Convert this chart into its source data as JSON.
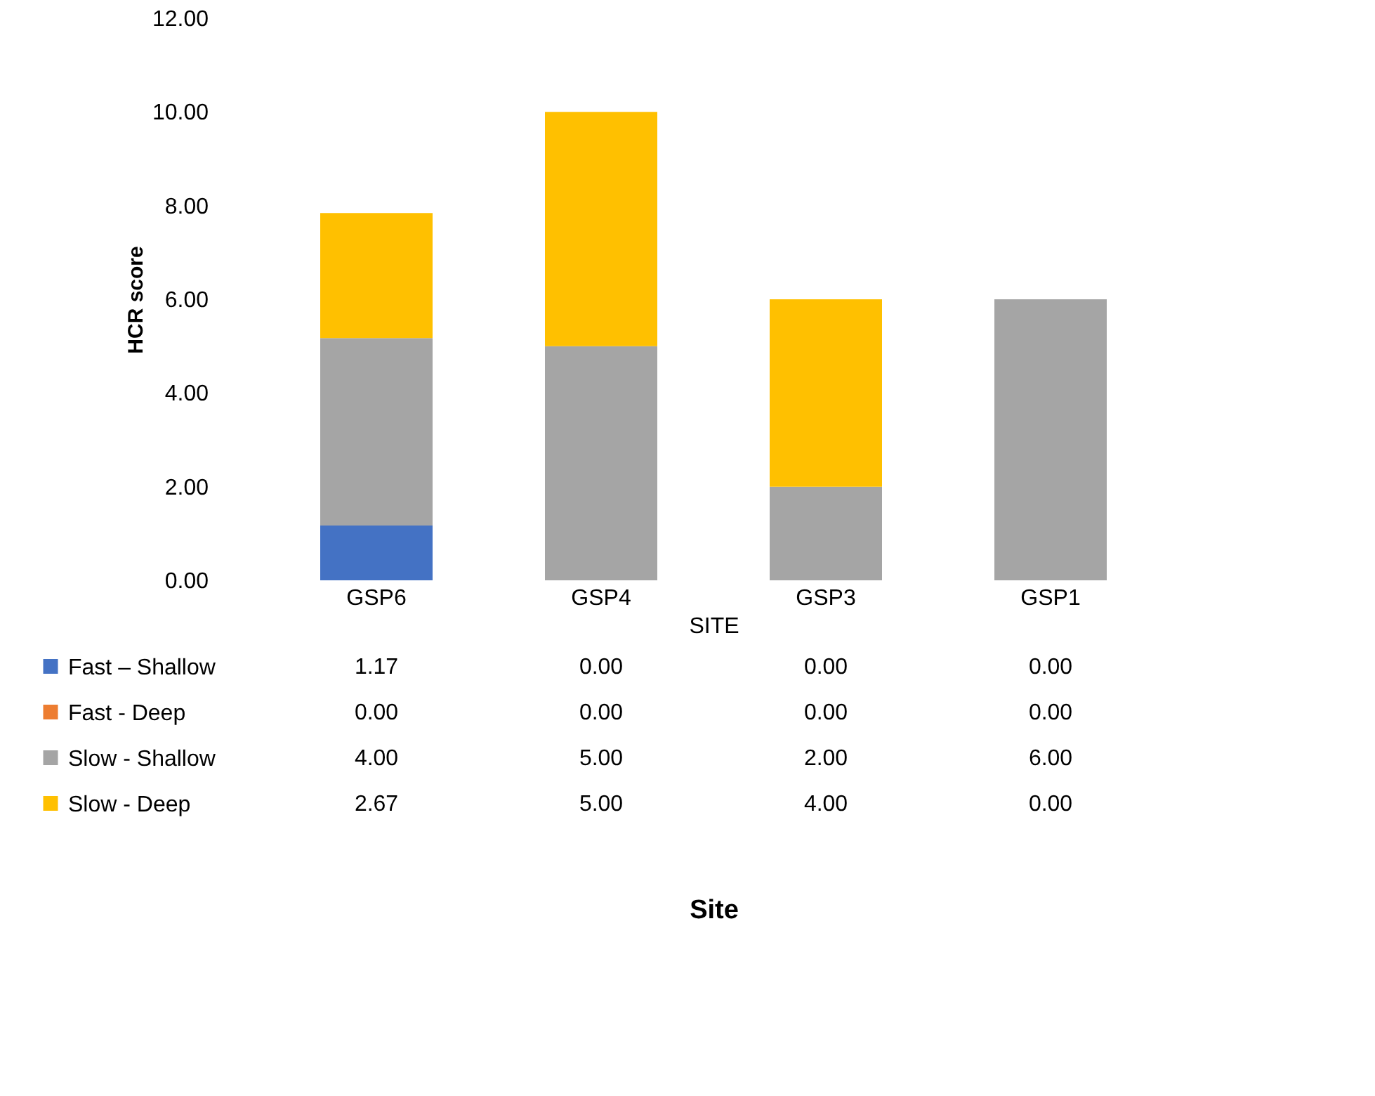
{
  "chart_data": {
    "type": "bar",
    "stacked": true,
    "ylabel": "HCR score",
    "xlabel": "SITE",
    "annotations": [
      "Site"
    ],
    "categories": [
      "GSP6",
      "GSP4",
      "GSP3",
      "GSP1"
    ],
    "series": [
      {
        "name": "Fast – Shallow",
        "color": "#4472c4",
        "values": [
          1.17,
          0,
          0,
          0
        ],
        "value_labels": [
          "1.17",
          "0.00",
          "0.00",
          "0.00"
        ]
      },
      {
        "name": "Fast - Deep",
        "color": "#ed7d31",
        "values": [
          0,
          0,
          0,
          0
        ],
        "value_labels": [
          "0.00",
          "0.00",
          "0.00",
          "0.00"
        ]
      },
      {
        "name": "Slow - Shallow",
        "color": "#a5a5a5",
        "values": [
          4,
          5,
          2,
          6
        ],
        "value_labels": [
          "4.00",
          "5.00",
          "2.00",
          "6.00"
        ]
      },
      {
        "name": "Slow - Deep",
        "color": "#ffc000",
        "values": [
          2.67,
          5,
          4,
          0
        ],
        "value_labels": [
          "2.67",
          "5.00",
          "4.00",
          "0.00"
        ]
      }
    ],
    "ylim": [
      0,
      12
    ],
    "yticks": [
      {
        "value": 0,
        "label": "0.00"
      },
      {
        "value": 2,
        "label": "2.00"
      },
      {
        "value": 4,
        "label": "4.00"
      },
      {
        "value": 6,
        "label": "6.00"
      },
      {
        "value": 8,
        "label": "8.00"
      },
      {
        "value": 10,
        "label": "10.00"
      },
      {
        "value": 12,
        "label": "12.00"
      }
    ],
    "grid": false,
    "legend": "bottom left"
  }
}
